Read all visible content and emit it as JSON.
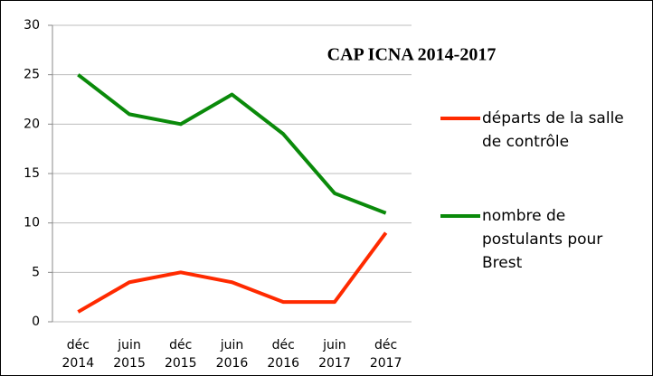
{
  "chart_data": {
    "type": "line",
    "title": "CAP ICNA 2014-2017",
    "categories": [
      "déc 2014",
      "juin 2015",
      "déc 2015",
      "juin 2016",
      "déc 2016",
      "juin 2017",
      "déc 2017"
    ],
    "series": [
      {
        "name": "départs de la salle de contrôle",
        "color": "#ff2a00",
        "values": [
          1,
          4,
          5,
          4,
          2,
          2,
          9
        ]
      },
      {
        "name": "nombre de postulants pour Brest",
        "color": "#0a8a0a",
        "values": [
          25,
          21,
          20,
          23,
          19,
          13,
          11
        ]
      }
    ],
    "ylim": [
      0,
      30
    ],
    "yticks": [
      0,
      5,
      10,
      15,
      20,
      25,
      30
    ],
    "grid": true,
    "legend": "right"
  }
}
